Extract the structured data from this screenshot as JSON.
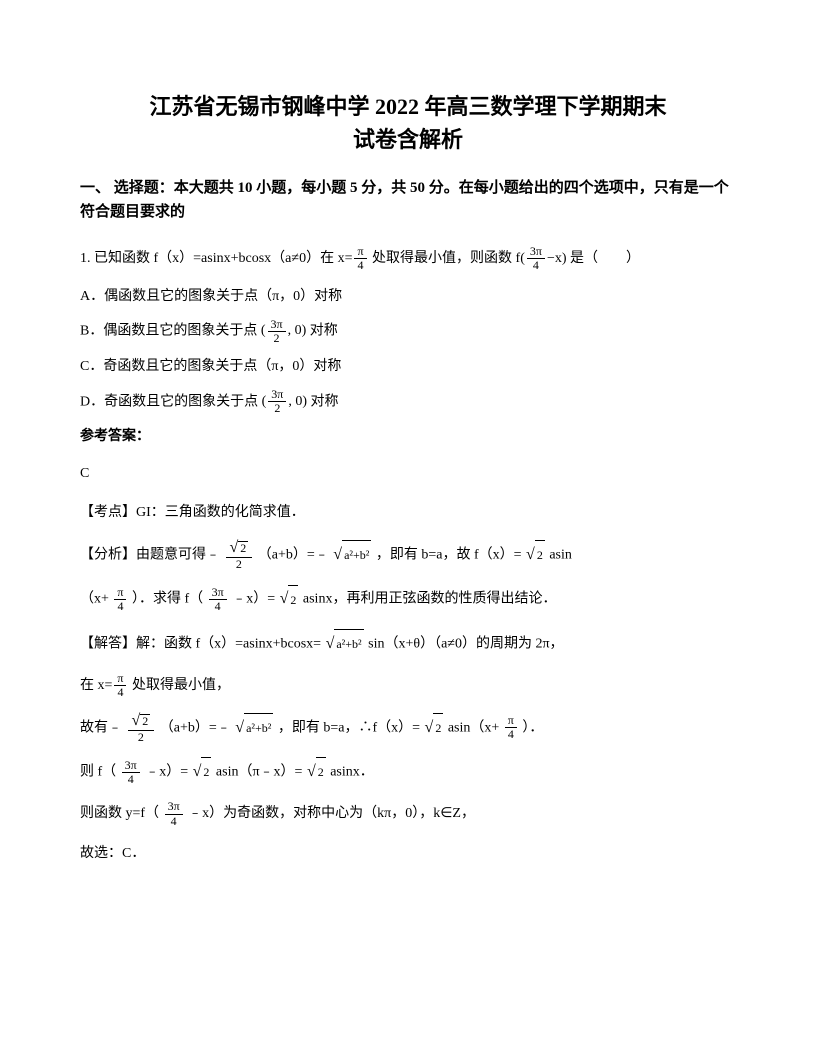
{
  "title_line1": "江苏省无锡市钢峰中学 2022 年高三数学理下学期期末",
  "title_line2": "试卷含解析",
  "section1": "一、 选择题：本大题共 10 小题，每小题 5 分，共 50 分。在每小题给出的四个选项中，只有是一个符合题目要求的",
  "q1": {
    "stem_a": "1. 已知函数 f（x）=asinx+bcosx（a≠0）在 ",
    "stem_b": " 处取得最小值，则函数 ",
    "stem_c": " 是（　　）",
    "x_eq": "x=",
    "f_expr_pre": "f(",
    "f_expr_post": "−x)",
    "optA": "A．偶函数且它的图象关于点（π，0）对称",
    "optB_pre": "B．偶函数且它的图象关于点 ",
    "optB_post": " 对称",
    "optC": "C．奇函数且它的图象关于点（π，0）对称",
    "optD_pre": "D．奇函数且它的图象关于点 ",
    "optD_post": " 对称",
    "point_pre": "(",
    "point_mid": ", 0)",
    "ans_label": "参考答案：",
    "ans": "C",
    "kaodian": "【考点】GI：三角函数的化简求值．",
    "fenxi_a": "【分析】由题意可得﹣ ",
    "fenxi_b": "（a+b）=﹣",
    "fenxi_c": "，即有 b=a，故 f（x）=",
    "fenxi_d": "asin",
    "fenxi_e": "（x+ ",
    "fenxi_f": "）．求得 f（",
    "fenxi_g": "﹣x）=",
    "fenxi_h": "asinx，再利用正弦函数的性质得出结论．",
    "jieda_a": "【解答】解：函数 f（x）=asinx+bcosx=",
    "jieda_b": "sin（x+θ）（a≠0）的周期为 2π，",
    "jieda_c": "在 ",
    "jieda_d": " 处取得最小值，",
    "jieda_e": "故有﹣ ",
    "jieda_f": "（a+b）=﹣",
    "jieda_g": "，即有 b=a，∴f（x）=",
    "jieda_h": "asin（x+ ",
    "jieda_i": "）．",
    "jieda_j": "则 f（",
    "jieda_k": "﹣x）=",
    "jieda_l": "asin（π﹣x）=",
    "jieda_m": "asinx．",
    "jieda_n": "则函数 y=f（",
    "jieda_o": "﹣x）为奇函数，对称中心为（kπ，0），k∈Z，",
    "jieda_p": "故选：C．",
    "pi": "π",
    "four": "4",
    "two": "2",
    "three_pi": "3π",
    "sqrt2": "2",
    "a2b2": "a²+b²"
  }
}
